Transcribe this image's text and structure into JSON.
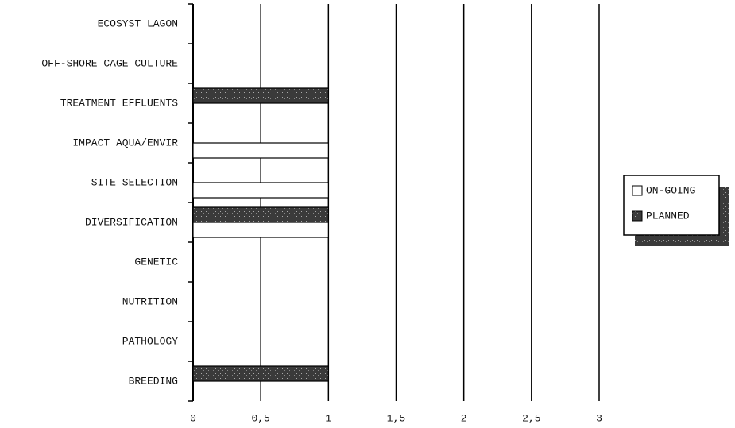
{
  "chart_data": {
    "type": "hbar",
    "categories": [
      "ECOSYST LAGON",
      "OFF-SHORE CAGE CULTURE",
      "TREATMENT EFFLUENTS",
      "IMPACT AQUA/ENVIR",
      "SITE SELECTION",
      "DIVERSIFICATION",
      "GENETIC",
      "NUTRITION",
      "PATHOLOGY",
      "BREEDING"
    ],
    "series": [
      {
        "name": "ON-GOING",
        "color": "#ffffff",
        "values": [
          0,
          0,
          0,
          1,
          1,
          1,
          0,
          0,
          0,
          0
        ]
      },
      {
        "name": "PLANNED",
        "color": "#3a3a3a",
        "values": [
          0,
          0,
          1,
          0,
          0,
          1,
          0,
          0,
          0,
          1
        ]
      }
    ],
    "xlim": [
      0,
      3
    ],
    "xticks": [
      0,
      {
        "value": 0.5,
        "label": "0,5"
      },
      1,
      {
        "value": 1.5,
        "label": "1,5"
      },
      2,
      {
        "value": 2.5,
        "label": "2,5"
      },
      3
    ],
    "grid": true,
    "legend": "right"
  }
}
